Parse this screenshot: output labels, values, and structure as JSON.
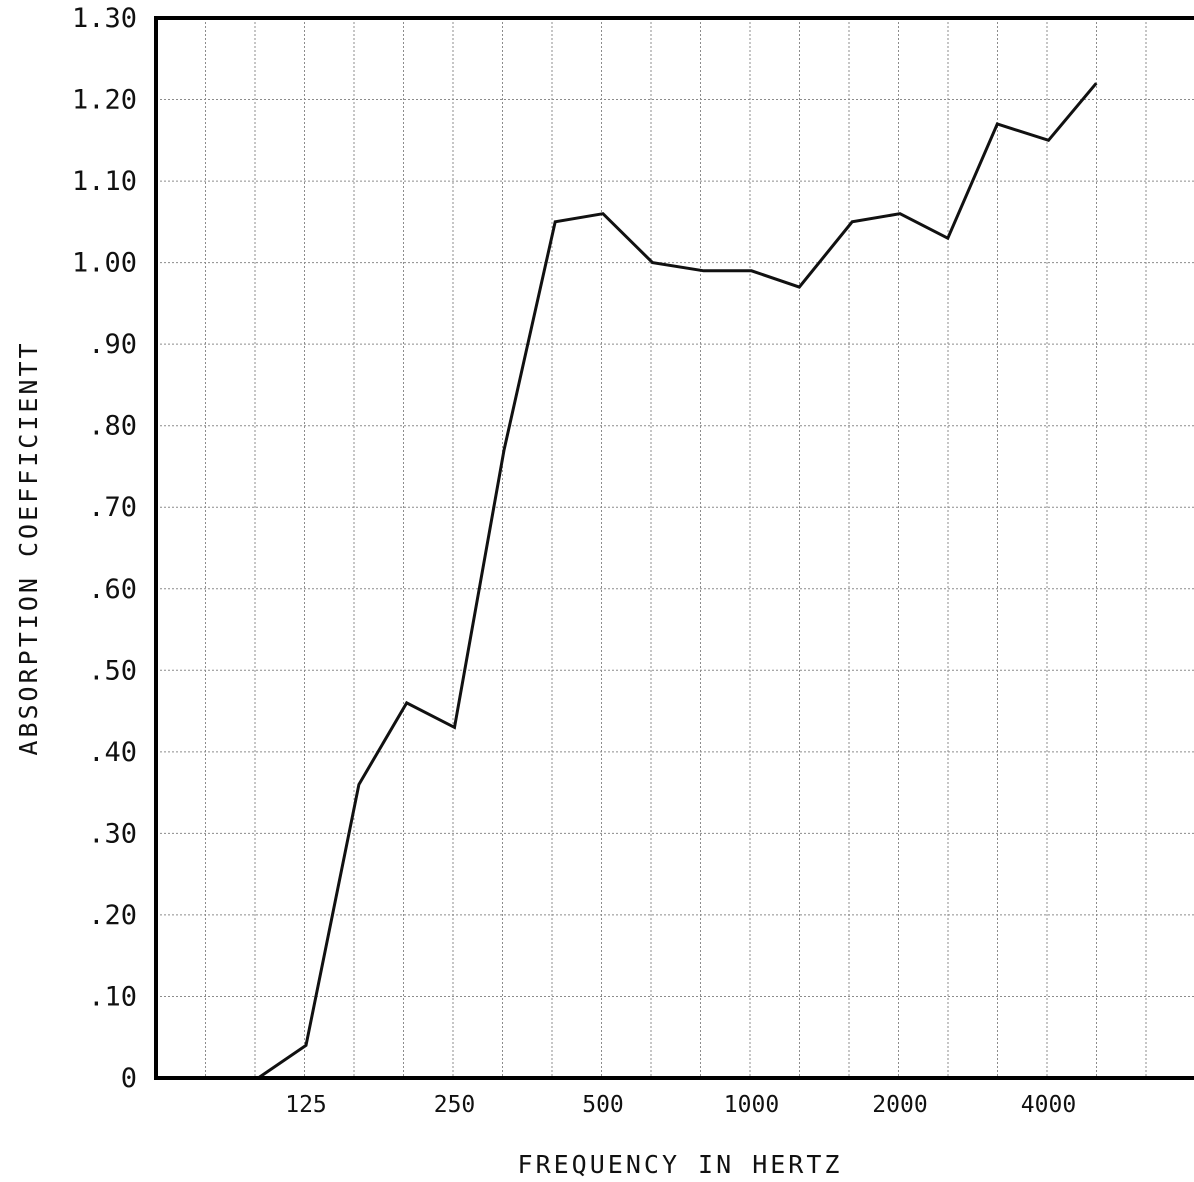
{
  "chart_data": {
    "type": "line",
    "title": "",
    "xlabel": "FREQUENCY IN HERTZ",
    "ylabel": "ABSORPTION COEFFICIENTT",
    "x_scale": "log2, third-octave grid",
    "x_tick_labels": [
      "125",
      "250",
      "500",
      "1000",
      "2000",
      "4000"
    ],
    "y_tick_labels": [
      "0",
      ".10",
      ".20",
      ".30",
      ".40",
      ".50",
      ".60",
      ".70",
      ".80",
      ".90",
      "1.00",
      "1.10",
      "1.20",
      "1.30"
    ],
    "ylim": [
      0,
      1.3
    ],
    "grid": true,
    "series": [
      {
        "x": [
          100,
          125,
          160,
          200,
          250,
          315,
          400,
          500,
          630,
          800,
          1000,
          1250,
          1600,
          2000,
          2500,
          3150,
          4000,
          5000
        ],
        "values": [
          0.0,
          0.04,
          0.36,
          0.46,
          0.43,
          0.77,
          1.05,
          1.06,
          1.0,
          0.99,
          0.99,
          0.97,
          1.05,
          1.06,
          1.03,
          1.17,
          1.15,
          1.22
        ]
      }
    ]
  },
  "colors": {
    "line": "#111111",
    "grid": "#8c8c8c",
    "axis": "#000000",
    "background": "#ffffff"
  }
}
